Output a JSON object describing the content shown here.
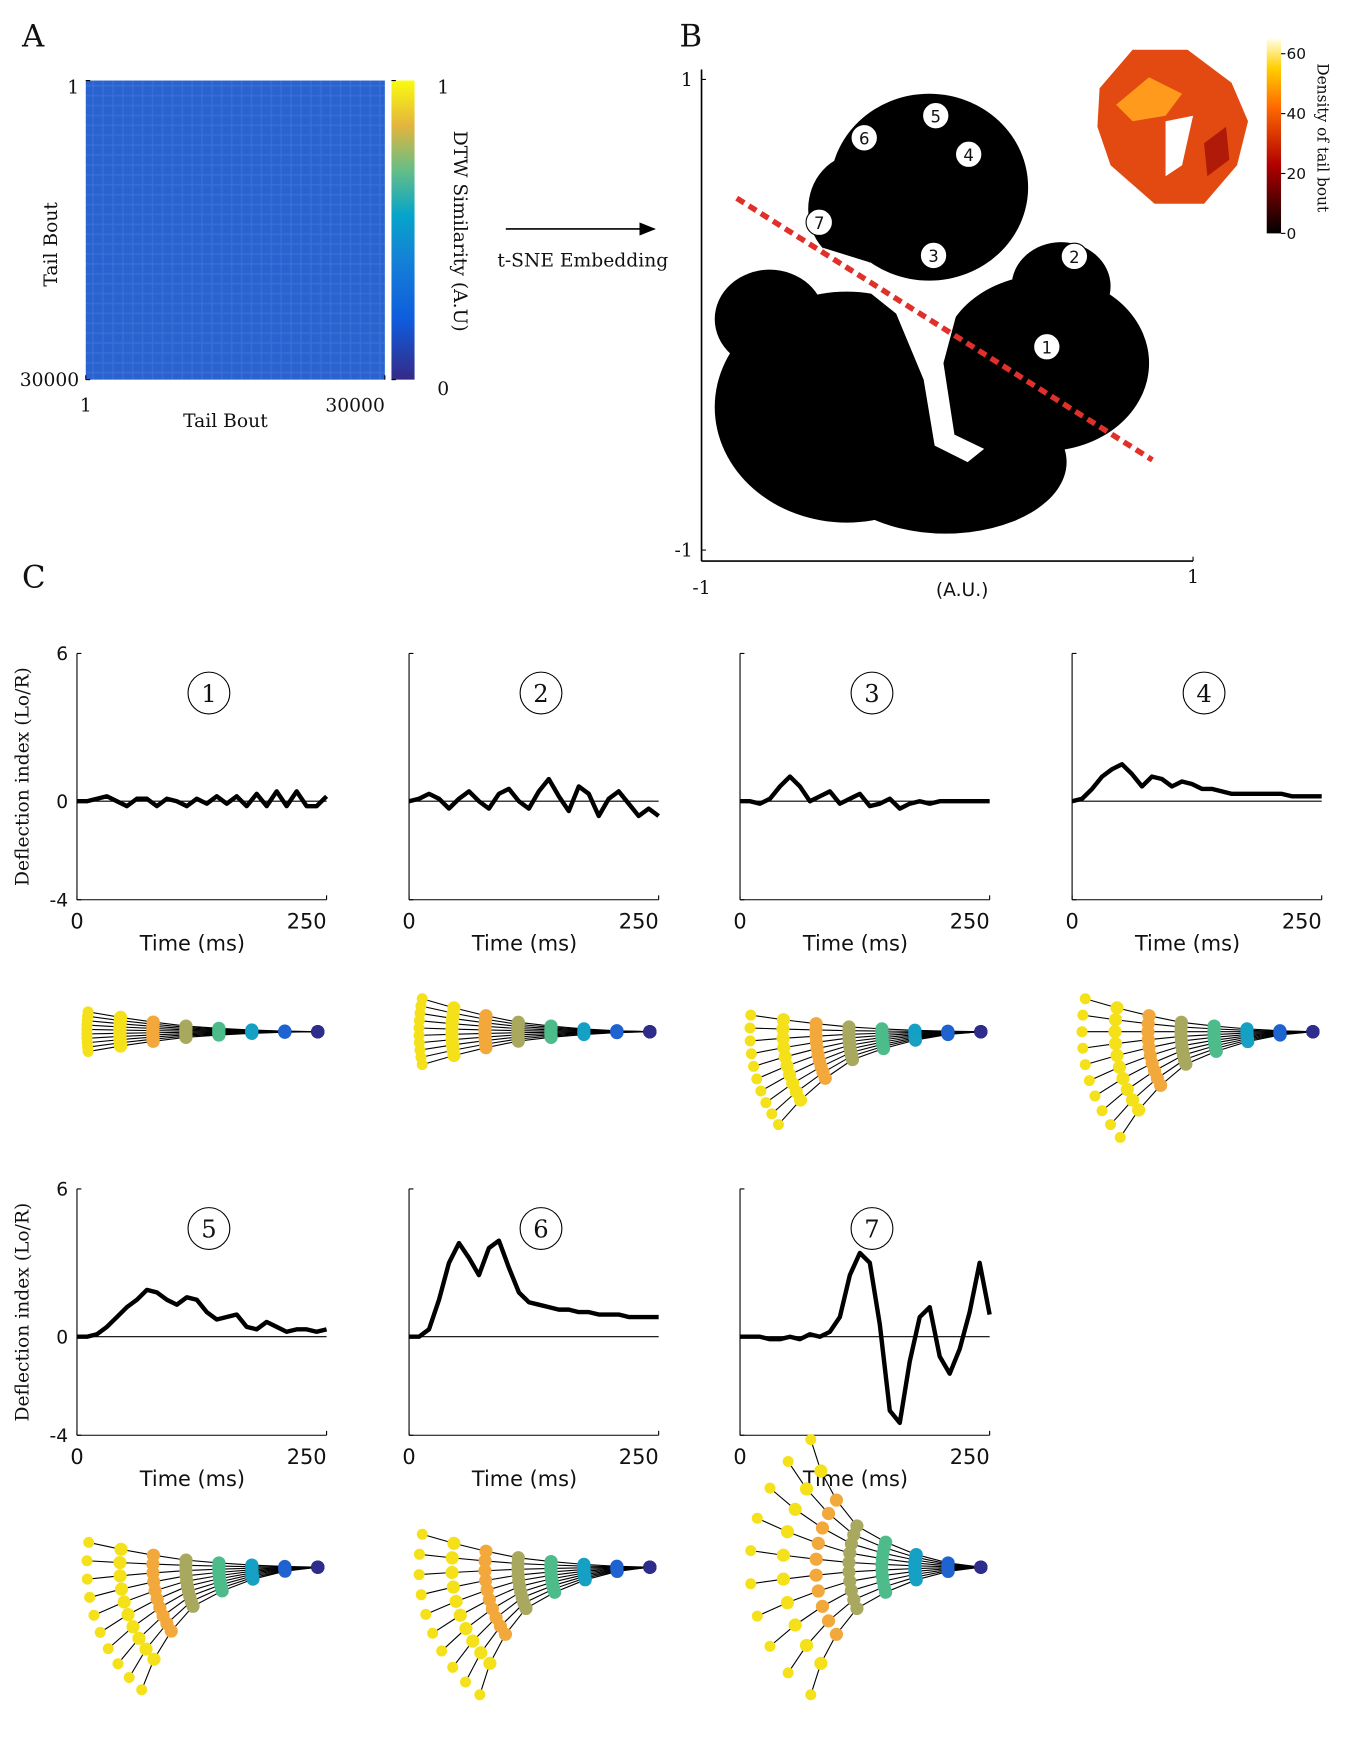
{
  "panel_labels": [
    "A",
    "B",
    "C"
  ],
  "chart_data": [
    {
      "type": "heatmap",
      "xlabel": "Tail Bout",
      "ylabel": "Tail Bout",
      "xlim": [
        1,
        30000
      ],
      "ylim": [
        1,
        30000
      ],
      "xticks": [
        1,
        30000
      ],
      "yticks": [
        1,
        30000
      ],
      "y_reversed": true,
      "colorbar": {
        "label": "DTW Similarity (A.U)",
        "lim": [
          0,
          1
        ],
        "ticks": [
          0,
          1
        ]
      },
      "annotation": "t-SNE Embedding"
    },
    {
      "type": "scatter",
      "xlabel": "(A.U.)",
      "xlim": [
        -1,
        1
      ],
      "ylim": [
        -1,
        1
      ],
      "xticks": [
        -1,
        1
      ],
      "yticks": [
        -1,
        1
      ],
      "color": "#000000",
      "point_labels": [
        "1",
        "2",
        "3",
        "4",
        "5",
        "6",
        "7"
      ],
      "x": [
        0.405,
        0.517,
        -0.056,
        0.087,
        -0.047,
        -0.338,
        -0.521
      ],
      "y": [
        -0.136,
        0.248,
        0.252,
        0.682,
        0.846,
        0.752,
        0.393
      ],
      "inset_colorbar": {
        "label": "Density of tail bout",
        "lim": [
          0,
          65
        ],
        "ticks": [
          0,
          20,
          40,
          60
        ]
      }
    },
    {
      "type": "line",
      "title": "1",
      "ylabel": "Deflection index (Lo/R)",
      "xlabel": "Time (ms)",
      "color": "#000000",
      "xlim": [
        0,
        250
      ],
      "ylim": [
        -4,
        6
      ],
      "xticks": [
        0,
        250
      ],
      "yticks": [
        -4,
        0,
        6
      ],
      "x": [
        0,
        10,
        20,
        30,
        40,
        50,
        60,
        70,
        80,
        90,
        100,
        110,
        120,
        130,
        140,
        150,
        160,
        170,
        180,
        190,
        200,
        210,
        220,
        230,
        240,
        250
      ],
      "values": [
        0,
        0,
        0.1,
        0.2,
        0,
        -0.2,
        0.1,
        0.1,
        -0.2,
        0.1,
        0,
        -0.2,
        0.1,
        -0.1,
        0.2,
        -0.1,
        0.2,
        -0.2,
        0.3,
        -0.2,
        0.4,
        -0.2,
        0.4,
        -0.2,
        -0.2,
        0.2
      ]
    },
    {
      "type": "line",
      "title": "2",
      "xlabel": "Time (ms)",
      "color": "#000000",
      "xlim": [
        0,
        250
      ],
      "ylim": [
        -4,
        6
      ],
      "xticks": [
        0,
        250
      ],
      "yticks": [
        -4,
        0,
        6
      ],
      "x": [
        0,
        10,
        20,
        30,
        40,
        50,
        60,
        70,
        80,
        90,
        100,
        110,
        120,
        130,
        140,
        150,
        160,
        170,
        180,
        190,
        200,
        210,
        220,
        230,
        240,
        250
      ],
      "values": [
        0,
        0.1,
        0.3,
        0.1,
        -0.3,
        0.1,
        0.4,
        0,
        -0.3,
        0.3,
        0.5,
        0,
        -0.3,
        0.4,
        0.9,
        0.2,
        -0.4,
        0.6,
        0.3,
        -0.6,
        0.1,
        0.4,
        -0.1,
        -0.6,
        -0.3,
        -0.6
      ]
    },
    {
      "type": "line",
      "title": "3",
      "xlabel": "Time (ms)",
      "color": "#000000",
      "xlim": [
        0,
        250
      ],
      "ylim": [
        -4,
        6
      ],
      "xticks": [
        0,
        250
      ],
      "yticks": [
        -4,
        0,
        6
      ],
      "x": [
        0,
        10,
        20,
        30,
        40,
        50,
        60,
        70,
        80,
        90,
        100,
        110,
        120,
        130,
        140,
        150,
        160,
        170,
        180,
        190,
        200,
        210,
        220,
        230,
        240,
        250
      ],
      "values": [
        0,
        0,
        -0.1,
        0.1,
        0.6,
        1.0,
        0.6,
        0,
        0.2,
        0.4,
        -0.1,
        0.1,
        0.3,
        -0.2,
        -0.1,
        0.1,
        -0.3,
        -0.1,
        0,
        -0.1,
        0,
        0,
        0,
        0,
        0,
        0
      ]
    },
    {
      "type": "line",
      "title": "4",
      "xlabel": "Time (ms)",
      "color": "#000000",
      "xlim": [
        0,
        250
      ],
      "ylim": [
        -4,
        6
      ],
      "xticks": [
        0,
        250
      ],
      "yticks": [
        -4,
        0,
        6
      ],
      "x": [
        0,
        10,
        20,
        30,
        40,
        50,
        60,
        70,
        80,
        90,
        100,
        110,
        120,
        130,
        140,
        150,
        160,
        170,
        180,
        190,
        200,
        210,
        220,
        230,
        240,
        250
      ],
      "values": [
        0,
        0.1,
        0.5,
        1.0,
        1.3,
        1.5,
        1.1,
        0.6,
        1.0,
        0.9,
        0.6,
        0.8,
        0.7,
        0.5,
        0.5,
        0.4,
        0.3,
        0.3,
        0.3,
        0.3,
        0.3,
        0.3,
        0.2,
        0.2,
        0.2,
        0.2
      ]
    },
    {
      "type": "line",
      "title": "5",
      "ylabel": "Deflection index (Lo/R)",
      "xlabel": "Time (ms)",
      "color": "#000000",
      "xlim": [
        0,
        250
      ],
      "ylim": [
        -4,
        6
      ],
      "xticks": [
        0,
        250
      ],
      "yticks": [
        -4,
        0,
        6
      ],
      "x": [
        0,
        10,
        20,
        30,
        40,
        50,
        60,
        70,
        80,
        90,
        100,
        110,
        120,
        130,
        140,
        150,
        160,
        170,
        180,
        190,
        200,
        210,
        220,
        230,
        240,
        250
      ],
      "values": [
        0,
        0,
        0.1,
        0.4,
        0.8,
        1.2,
        1.5,
        1.9,
        1.8,
        1.5,
        1.3,
        1.6,
        1.5,
        1.0,
        0.7,
        0.8,
        0.9,
        0.4,
        0.3,
        0.6,
        0.4,
        0.2,
        0.3,
        0.3,
        0.2,
        0.3
      ]
    },
    {
      "type": "line",
      "title": "6",
      "xlabel": "Time (ms)",
      "color": "#000000",
      "xlim": [
        0,
        250
      ],
      "ylim": [
        -4,
        6
      ],
      "xticks": [
        0,
        250
      ],
      "yticks": [
        -4,
        0,
        6
      ],
      "x": [
        0,
        10,
        20,
        30,
        40,
        50,
        60,
        70,
        80,
        90,
        100,
        110,
        120,
        130,
        140,
        150,
        160,
        170,
        180,
        190,
        200,
        210,
        220,
        230,
        240,
        250
      ],
      "values": [
        0,
        0,
        0.3,
        1.5,
        3.0,
        3.8,
        3.2,
        2.5,
        3.6,
        3.9,
        2.8,
        1.8,
        1.4,
        1.3,
        1.2,
        1.1,
        1.1,
        1.0,
        1.0,
        0.9,
        0.9,
        0.9,
        0.8,
        0.8,
        0.8,
        0.8
      ]
    },
    {
      "type": "line",
      "title": "7",
      "xlabel": "Time (ms)",
      "color": "#000000",
      "xlim": [
        0,
        250
      ],
      "ylim": [
        -4,
        6
      ],
      "xticks": [
        0,
        250
      ],
      "yticks": [
        -4,
        0,
        6
      ],
      "x": [
        0,
        10,
        20,
        30,
        40,
        50,
        60,
        70,
        80,
        90,
        100,
        110,
        120,
        130,
        140,
        150,
        160,
        170,
        180,
        190,
        200,
        210,
        220,
        230,
        240,
        250
      ],
      "values": [
        0,
        0,
        0,
        -0.1,
        -0.1,
        0,
        -0.1,
        0.1,
        0,
        0.2,
        0.8,
        2.5,
        3.4,
        3.0,
        0.5,
        -3.0,
        -3.5,
        -1.0,
        0.8,
        1.2,
        -0.8,
        -1.5,
        -0.5,
        1.0,
        3.0,
        0.9
      ]
    }
  ]
}
